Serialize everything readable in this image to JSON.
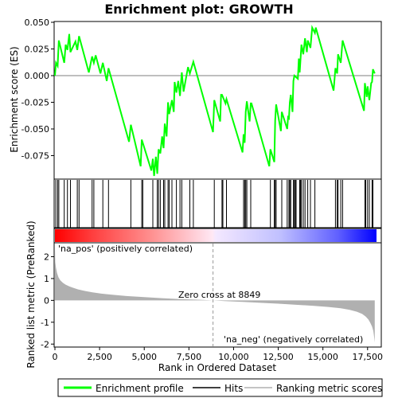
{
  "chart_data": {
    "type": "line",
    "title": "Enrichment plot: GROWTH",
    "xlabel": "Rank in Ordered Dataset",
    "xlim": [
      0,
      18000
    ],
    "x_ticks": [
      0,
      2500,
      5000,
      7500,
      10000,
      12500,
      15000,
      17500
    ],
    "x_tick_labels": [
      "0",
      "2,500",
      "5,000",
      "7,500",
      "10,000",
      "12,500",
      "15,000",
      "17,500"
    ],
    "top_panel": {
      "ylabel": "Enrichment score (ES)",
      "ylim": [
        -0.097,
        0.05
      ],
      "y_ticks": [
        -0.075,
        -0.05,
        -0.025,
        0.0,
        0.025,
        0.05
      ],
      "y_tick_labels": [
        "-0.075",
        "-0.050",
        "-0.025",
        "0.000",
        "0.025",
        "0.050"
      ],
      "grid": false,
      "series": [
        {
          "name": "Enrichment profile",
          "color": "#00ff00",
          "x": [
            0,
            60,
            150,
            220,
            520,
            600,
            700,
            800,
            870,
            1150,
            1250,
            1350,
            1900,
            2080,
            2180,
            2280,
            2550,
            2680,
            2900,
            3000,
            4150,
            4250,
            4800,
            4860,
            5400,
            5480,
            5550,
            5650,
            5730,
            5800,
            5900,
            6000,
            6080,
            6150,
            6250,
            6330,
            6400,
            6550,
            6650,
            6700,
            6800,
            6900,
            7000,
            7100,
            7200,
            7450,
            7550,
            7750,
            8850,
            8920,
            9250,
            9300,
            9350,
            9550,
            9600,
            10500,
            10560,
            10620,
            10680,
            10740,
            10900,
            10960,
            11000,
            12000,
            12060,
            12280,
            12330,
            12380,
            12650,
            12700,
            13000,
            13050,
            13100,
            13150,
            13200,
            13300,
            13350,
            13400,
            13600,
            13650,
            13700,
            13800,
            13900,
            14000,
            14100,
            14150,
            14300,
            14400,
            14550,
            14600,
            15600,
            15700,
            15800,
            15850,
            16000,
            16100,
            17300,
            17350,
            17450,
            17500,
            17600,
            17700,
            17750,
            17800,
            17900
          ],
          "y": [
            0.0,
            0.012,
            0.009,
            0.033,
            0.012,
            0.029,
            0.024,
            0.039,
            0.022,
            0.032,
            0.024,
            0.037,
            0.003,
            0.018,
            0.012,
            0.019,
            0.002,
            0.012,
            -0.005,
            0.007,
            -0.062,
            -0.046,
            -0.085,
            -0.06,
            -0.089,
            -0.078,
            -0.094,
            -0.076,
            -0.092,
            -0.069,
            -0.073,
            -0.057,
            -0.068,
            -0.045,
            -0.057,
            -0.025,
            -0.036,
            -0.023,
            -0.034,
            -0.006,
            -0.016,
            -0.005,
            -0.019,
            0.003,
            -0.015,
            0.008,
            0.002,
            0.013,
            -0.053,
            -0.023,
            -0.043,
            -0.018,
            -0.018,
            -0.026,
            -0.022,
            -0.072,
            -0.055,
            -0.063,
            -0.034,
            -0.024,
            -0.043,
            -0.026,
            -0.026,
            -0.085,
            -0.069,
            -0.081,
            -0.042,
            -0.027,
            -0.052,
            -0.034,
            -0.05,
            -0.039,
            -0.04,
            -0.025,
            -0.018,
            -0.034,
            -0.005,
            0.0,
            -0.003,
            0.016,
            0.003,
            0.029,
            0.02,
            0.035,
            0.022,
            0.033,
            0.026,
            0.045,
            0.04,
            0.045,
            -0.014,
            0.007,
            0.002,
            0.02,
            0.012,
            0.033,
            -0.033,
            -0.007,
            -0.02,
            -0.01,
            -0.023,
            -0.007,
            -0.006,
            0.006,
            0.002
          ]
        }
      ],
      "hits": [
        50,
        150,
        220,
        520,
        700,
        870,
        1250,
        1350,
        2080,
        2180,
        2680,
        3000,
        4250,
        4860,
        4920,
        5480,
        5730,
        5800,
        5900,
        6080,
        6150,
        6330,
        6400,
        6550,
        6800,
        7000,
        7100,
        7550,
        7750,
        8920,
        9350,
        9400,
        9600,
        10560,
        10620,
        10680,
        10740,
        10960,
        12060,
        12280,
        12330,
        12380,
        12700,
        13000,
        13100,
        13150,
        13200,
        13350,
        13400,
        13450,
        13500,
        13700,
        13750,
        13800,
        13900,
        14000,
        14150,
        14300,
        14550,
        15700,
        15800,
        15850,
        16000,
        16100,
        17350,
        17400,
        17500,
        17600,
        17750,
        17800
      ]
    },
    "bottom_panel": {
      "ylabel": "Ranked list metric (PreRanked)",
      "ylim": [
        -2.1,
        2.6
      ],
      "y_ticks": [
        -2,
        -1,
        0,
        1,
        2
      ],
      "y_tick_labels": [
        "-2",
        "-1",
        "0",
        "1",
        "2"
      ],
      "series": [
        {
          "name": "Ranking metric scores",
          "color": "#b0b0b0",
          "x": [
            0,
            20,
            60,
            120,
            200,
            300,
            450,
            600,
            800,
            1000,
            1300,
            1700,
            2100,
            2600,
            3200,
            4000,
            5000,
            6000,
            7000,
            8000,
            8849,
            9500,
            10500,
            11500,
            12500,
            13500,
            14500,
            15300,
            16000,
            16500,
            16900,
            17200,
            17400,
            17550,
            17650,
            17750,
            17820,
            17870,
            17900
          ],
          "y": [
            2.45,
            1.75,
            1.5,
            1.25,
            1.05,
            0.92,
            0.8,
            0.72,
            0.64,
            0.58,
            0.5,
            0.43,
            0.37,
            0.31,
            0.26,
            0.2,
            0.15,
            0.1,
            0.06,
            0.03,
            0.0,
            -0.03,
            -0.07,
            -0.11,
            -0.15,
            -0.2,
            -0.25,
            -0.3,
            -0.36,
            -0.43,
            -0.52,
            -0.62,
            -0.74,
            -0.88,
            -1.02,
            -1.2,
            -1.4,
            -1.7,
            -1.92
          ]
        }
      ],
      "annotations": [
        {
          "text": "'na_pos' (positively correlated)",
          "color": "#cc0000"
        },
        {
          "text": "Zero cross at 8849",
          "color": "#000000"
        },
        {
          "text": "'na_neg' (negatively correlated)",
          "color": "#0000cc"
        }
      ],
      "zero_cross": 8849
    },
    "legend": {
      "placement": "bottom",
      "items": [
        {
          "label": "Enrichment profile",
          "color": "#00ff00"
        },
        {
          "label": "Hits",
          "color": "#000000"
        },
        {
          "label": "Ranking metric scores",
          "color": "#b0b0b0"
        }
      ]
    }
  }
}
